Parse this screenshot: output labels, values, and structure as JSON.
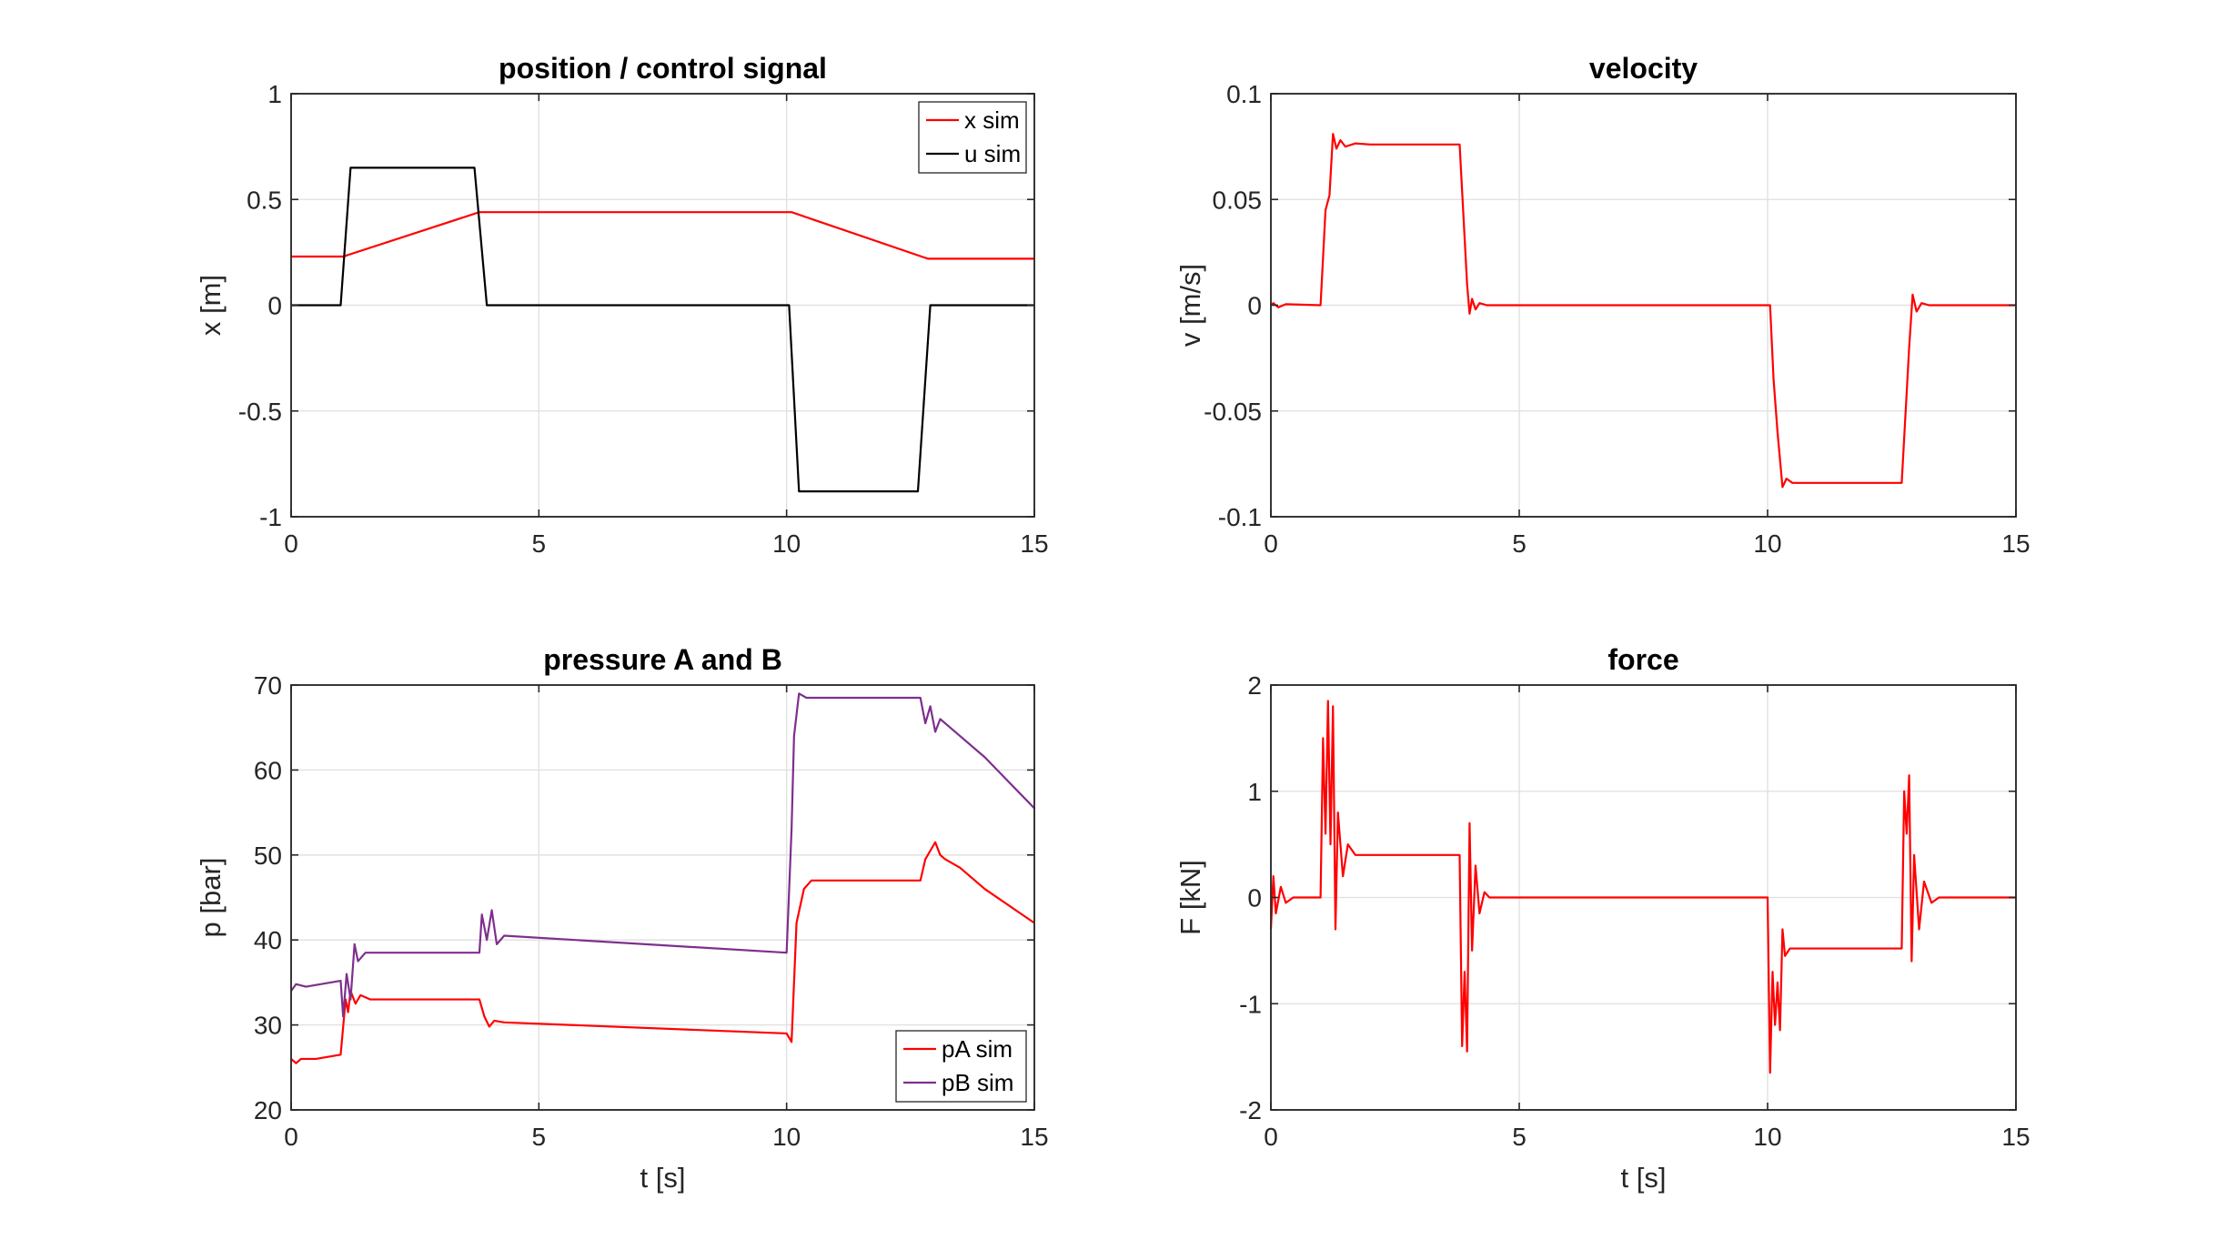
{
  "chart_data": [
    {
      "type": "line",
      "title": "position / control signal",
      "xlabel": "",
      "ylabel": "x [m]",
      "xlim": [
        0,
        15
      ],
      "ylim": [
        -1,
        1
      ],
      "xticks": [
        0,
        5,
        10,
        15
      ],
      "xtick_labels": [
        "0",
        "5",
        "10",
        "15"
      ],
      "yticks": [
        -1,
        -0.5,
        0,
        0.5,
        1
      ],
      "ytick_labels": [
        "-1",
        "-0.5",
        "0",
        "0.5",
        "1"
      ],
      "grid": true,
      "legend": "top-right",
      "series": [
        {
          "name": "x sim",
          "color": "#ff0000",
          "points": [
            [
              0,
              0.23
            ],
            [
              1.05,
              0.23
            ],
            [
              3.8,
              0.44
            ],
            [
              10.1,
              0.44
            ],
            [
              12.85,
              0.22
            ],
            [
              15,
              0.22
            ]
          ]
        },
        {
          "name": "u sim",
          "color": "#000000",
          "points": [
            [
              0,
              0
            ],
            [
              1.0,
              0
            ],
            [
              1.2,
              0.65
            ],
            [
              3.7,
              0.65
            ],
            [
              3.95,
              0
            ],
            [
              10.05,
              0
            ],
            [
              10.25,
              -0.88
            ],
            [
              12.65,
              -0.88
            ],
            [
              12.9,
              0
            ],
            [
              15,
              0
            ]
          ]
        }
      ]
    },
    {
      "type": "line",
      "title": "velocity",
      "xlabel": "",
      "ylabel": "v [m/s]",
      "xlim": [
        0,
        15
      ],
      "ylim": [
        -0.1,
        0.1
      ],
      "xticks": [
        0,
        5,
        10,
        15
      ],
      "xtick_labels": [
        "0",
        "5",
        "10",
        "15"
      ],
      "yticks": [
        -0.1,
        -0.05,
        0,
        0.05,
        0.1
      ],
      "ytick_labels": [
        "-0.1",
        "-0.05",
        "0",
        "0.05",
        "0.1"
      ],
      "grid": true,
      "legend": "none",
      "series": [
        {
          "color": "#ff0000",
          "points": [
            [
              0,
              0
            ],
            [
              0.05,
              0.001
            ],
            [
              0.15,
              -0.001
            ],
            [
              0.3,
              0.0005
            ],
            [
              1.0,
              0
            ],
            [
              1.1,
              0.045
            ],
            [
              1.18,
              0.052
            ],
            [
              1.25,
              0.081
            ],
            [
              1.32,
              0.074
            ],
            [
              1.4,
              0.078
            ],
            [
              1.5,
              0.075
            ],
            [
              1.7,
              0.0765
            ],
            [
              2.0,
              0.076
            ],
            [
              3.8,
              0.076
            ],
            [
              3.95,
              0.01
            ],
            [
              4.0,
              -0.004
            ],
            [
              4.05,
              0.003
            ],
            [
              4.12,
              -0.002
            ],
            [
              4.2,
              0.001
            ],
            [
              4.35,
              0
            ],
            [
              10.05,
              0
            ],
            [
              10.12,
              -0.035
            ],
            [
              10.2,
              -0.06
            ],
            [
              10.3,
              -0.086
            ],
            [
              10.38,
              -0.082
            ],
            [
              10.5,
              -0.084
            ],
            [
              12.7,
              -0.084
            ],
            [
              12.85,
              -0.02
            ],
            [
              12.92,
              0.005
            ],
            [
              13.0,
              -0.003
            ],
            [
              13.1,
              0.001
            ],
            [
              13.25,
              0
            ],
            [
              15,
              0
            ]
          ]
        }
      ]
    },
    {
      "type": "line",
      "title": "pressure A and B",
      "xlabel": "t [s]",
      "ylabel": "p [bar]",
      "xlim": [
        0,
        15
      ],
      "ylim": [
        20,
        70
      ],
      "xticks": [
        0,
        5,
        10,
        15
      ],
      "xtick_labels": [
        "0",
        "5",
        "10",
        "15"
      ],
      "yticks": [
        20,
        30,
        40,
        50,
        60,
        70
      ],
      "ytick_labels": [
        "20",
        "30",
        "40",
        "50",
        "60",
        "70"
      ],
      "grid": true,
      "legend": "bottom-right",
      "series": [
        {
          "name": "pA sim",
          "color": "#ff0000",
          "points": [
            [
              0,
              26
            ],
            [
              0.1,
              25.5
            ],
            [
              0.2,
              26
            ],
            [
              0.5,
              26
            ],
            [
              1.0,
              26.5
            ],
            [
              1.1,
              33
            ],
            [
              1.15,
              31.5
            ],
            [
              1.2,
              34
            ],
            [
              1.3,
              32.5
            ],
            [
              1.4,
              33.5
            ],
            [
              1.6,
              33
            ],
            [
              3.8,
              33
            ],
            [
              3.9,
              31
            ],
            [
              4.0,
              29.8
            ],
            [
              4.1,
              30.5
            ],
            [
              4.3,
              30.3
            ],
            [
              10.0,
              29.0
            ],
            [
              10.1,
              28
            ],
            [
              10.2,
              42
            ],
            [
              10.35,
              46
            ],
            [
              10.5,
              47
            ],
            [
              12.7,
              47
            ],
            [
              12.8,
              49.5
            ],
            [
              12.9,
              50.5
            ],
            [
              13.0,
              51.5
            ],
            [
              13.1,
              50
            ],
            [
              13.2,
              49.5
            ],
            [
              13.5,
              48.5
            ],
            [
              14.0,
              46
            ],
            [
              15,
              42
            ]
          ]
        },
        {
          "name": "pB sim",
          "color": "#7e2f8e",
          "points": [
            [
              0,
              34
            ],
            [
              0.1,
              34.8
            ],
            [
              0.3,
              34.5
            ],
            [
              1.0,
              35.2
            ],
            [
              1.05,
              31
            ],
            [
              1.12,
              36
            ],
            [
              1.2,
              33
            ],
            [
              1.28,
              39.5
            ],
            [
              1.35,
              37.5
            ],
            [
              1.5,
              38.5
            ],
            [
              3.8,
              38.5
            ],
            [
              3.85,
              43
            ],
            [
              3.95,
              40
            ],
            [
              4.05,
              43.5
            ],
            [
              4.15,
              39.5
            ],
            [
              4.3,
              40.5
            ],
            [
              10.0,
              38.5
            ],
            [
              10.1,
              53
            ],
            [
              10.15,
              64
            ],
            [
              10.25,
              69
            ],
            [
              10.4,
              68.5
            ],
            [
              12.7,
              68.5
            ],
            [
              12.8,
              65.5
            ],
            [
              12.9,
              67.5
            ],
            [
              13.0,
              64.5
            ],
            [
              13.1,
              66
            ],
            [
              13.3,
              65
            ],
            [
              14.0,
              61.5
            ],
            [
              15,
              55.5
            ]
          ]
        }
      ]
    },
    {
      "type": "line",
      "title": "force",
      "xlabel": "t [s]",
      "ylabel": "F [kN]",
      "xlim": [
        0,
        15
      ],
      "ylim": [
        -2,
        2
      ],
      "xticks": [
        0,
        5,
        10,
        15
      ],
      "xtick_labels": [
        "0",
        "5",
        "10",
        "15"
      ],
      "yticks": [
        -2,
        -1,
        0,
        1,
        2
      ],
      "ytick_labels": [
        "-2",
        "-1",
        "0",
        "1",
        "2"
      ],
      "grid": true,
      "legend": "none",
      "series": [
        {
          "color": "#ff0000",
          "points": [
            [
              0,
              -0.3
            ],
            [
              0.05,
              0.2
            ],
            [
              0.1,
              -0.15
            ],
            [
              0.2,
              0.1
            ],
            [
              0.3,
              -0.05
            ],
            [
              0.45,
              0
            ],
            [
              1.0,
              0
            ],
            [
              1.05,
              1.5
            ],
            [
              1.1,
              0.6
            ],
            [
              1.15,
              1.85
            ],
            [
              1.2,
              0.5
            ],
            [
              1.25,
              1.8
            ],
            [
              1.3,
              -0.3
            ],
            [
              1.35,
              0.8
            ],
            [
              1.45,
              0.2
            ],
            [
              1.55,
              0.5
            ],
            [
              1.7,
              0.4
            ],
            [
              3.8,
              0.4
            ],
            [
              3.85,
              -1.4
            ],
            [
              3.9,
              -0.7
            ],
            [
              3.95,
              -1.45
            ],
            [
              4.0,
              0.7
            ],
            [
              4.05,
              -0.5
            ],
            [
              4.12,
              0.3
            ],
            [
              4.2,
              -0.15
            ],
            [
              4.3,
              0.05
            ],
            [
              4.4,
              0
            ],
            [
              10.0,
              0
            ],
            [
              10.05,
              -1.65
            ],
            [
              10.1,
              -0.7
            ],
            [
              10.15,
              -1.2
            ],
            [
              10.2,
              -0.8
            ],
            [
              10.25,
              -1.25
            ],
            [
              10.3,
              -0.3
            ],
            [
              10.35,
              -0.55
            ],
            [
              10.45,
              -0.48
            ],
            [
              12.7,
              -0.48
            ],
            [
              12.75,
              1.0
            ],
            [
              12.8,
              0.6
            ],
            [
              12.85,
              1.15
            ],
            [
              12.9,
              -0.6
            ],
            [
              12.95,
              0.4
            ],
            [
              13.05,
              -0.3
            ],
            [
              13.15,
              0.15
            ],
            [
              13.3,
              -0.05
            ],
            [
              13.45,
              0
            ],
            [
              15,
              0
            ]
          ]
        }
      ]
    }
  ]
}
